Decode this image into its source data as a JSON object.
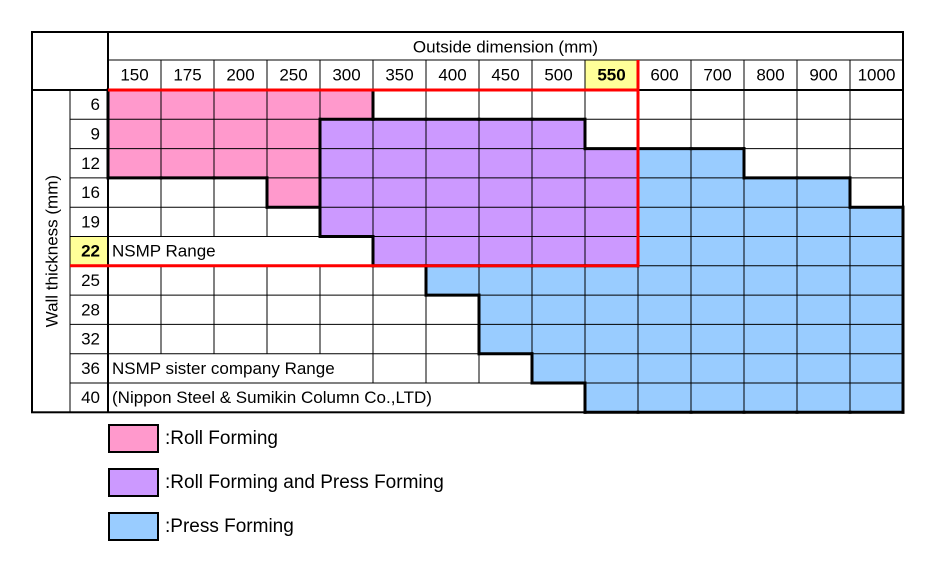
{
  "header": {
    "x_title": "Outside dimension (mm)",
    "y_title": "Wall thickness (mm)"
  },
  "outside_dimensions": [
    "150",
    "175",
    "200",
    "250",
    "300",
    "350",
    "400",
    "450",
    "500",
    "550",
    "600",
    "700",
    "800",
    "900",
    "1000"
  ],
  "wall_thicknesses": [
    "6",
    "9",
    "12",
    "16",
    "19",
    "22",
    "25",
    "28",
    "32",
    "36",
    "40"
  ],
  "highlight": {
    "outside_dimension": "550",
    "wall_thickness": "22"
  },
  "annotations": {
    "nsmp_range": "NSMP Range",
    "sister_range": "NSMP sister company Range",
    "sister_company": "(Nippon Steel & Sumikin Column Co.,LTD)"
  },
  "colors": {
    "roll": "#ff99cc",
    "roll_press": "#cc99ff",
    "press": "#99ccff",
    "highlight": "#ffff99",
    "range_line": "#ff0000"
  },
  "legend": [
    {
      "key": "roll",
      "label": ":Roll Forming"
    },
    {
      "key": "roll_press",
      "label": ":Roll Forming and Press Forming"
    },
    {
      "key": "press",
      "label": ":Press Forming"
    }
  ],
  "chart_data": {
    "type": "table",
    "columns": [
      "150",
      "175",
      "200",
      "250",
      "300",
      "350",
      "400",
      "450",
      "500",
      "550",
      "600",
      "700",
      "800",
      "900",
      "1000"
    ],
    "rows": [
      "6",
      "9",
      "12",
      "16",
      "19",
      "22",
      "25",
      "28",
      "32",
      "36",
      "40"
    ],
    "cells": [
      [
        "roll",
        "roll",
        "roll",
        "roll",
        "roll",
        "",
        "",
        "",
        "",
        "",
        "",
        "",
        "",
        "",
        ""
      ],
      [
        "roll",
        "roll",
        "roll",
        "roll",
        "roll_press",
        "roll_press",
        "roll_press",
        "roll_press",
        "roll_press",
        "",
        "",
        "",
        "",
        "",
        ""
      ],
      [
        "roll",
        "roll",
        "roll",
        "roll",
        "roll_press",
        "roll_press",
        "roll_press",
        "roll_press",
        "roll_press",
        "roll_press",
        "press",
        "press",
        "",
        "",
        ""
      ],
      [
        "",
        "",
        "",
        "roll",
        "roll_press",
        "roll_press",
        "roll_press",
        "roll_press",
        "roll_press",
        "roll_press",
        "press",
        "press",
        "press",
        "press",
        ""
      ],
      [
        "",
        "",
        "",
        "",
        "roll_press",
        "roll_press",
        "roll_press",
        "roll_press",
        "roll_press",
        "roll_press",
        "press",
        "press",
        "press",
        "press",
        "press"
      ],
      [
        "",
        "",
        "",
        "",
        "",
        "roll_press",
        "roll_press",
        "roll_press",
        "roll_press",
        "roll_press",
        "press",
        "press",
        "press",
        "press",
        "press"
      ],
      [
        "",
        "",
        "",
        "",
        "",
        "",
        "press",
        "press",
        "press",
        "press",
        "press",
        "press",
        "press",
        "press",
        "press"
      ],
      [
        "",
        "",
        "",
        "",
        "",
        "",
        "",
        "press",
        "press",
        "press",
        "press",
        "press",
        "press",
        "press",
        "press"
      ],
      [
        "",
        "",
        "",
        "",
        "",
        "",
        "",
        "press",
        "press",
        "press",
        "press",
        "press",
        "press",
        "press",
        "press"
      ],
      [
        "",
        "",
        "",
        "",
        "",
        "",
        "",
        "",
        "press",
        "press",
        "press",
        "press",
        "press",
        "press",
        "press"
      ],
      [
        "",
        "",
        "",
        "",
        "",
        "",
        "",
        "",
        "",
        "press",
        "press",
        "press",
        "press",
        "press",
        "press"
      ]
    ]
  }
}
